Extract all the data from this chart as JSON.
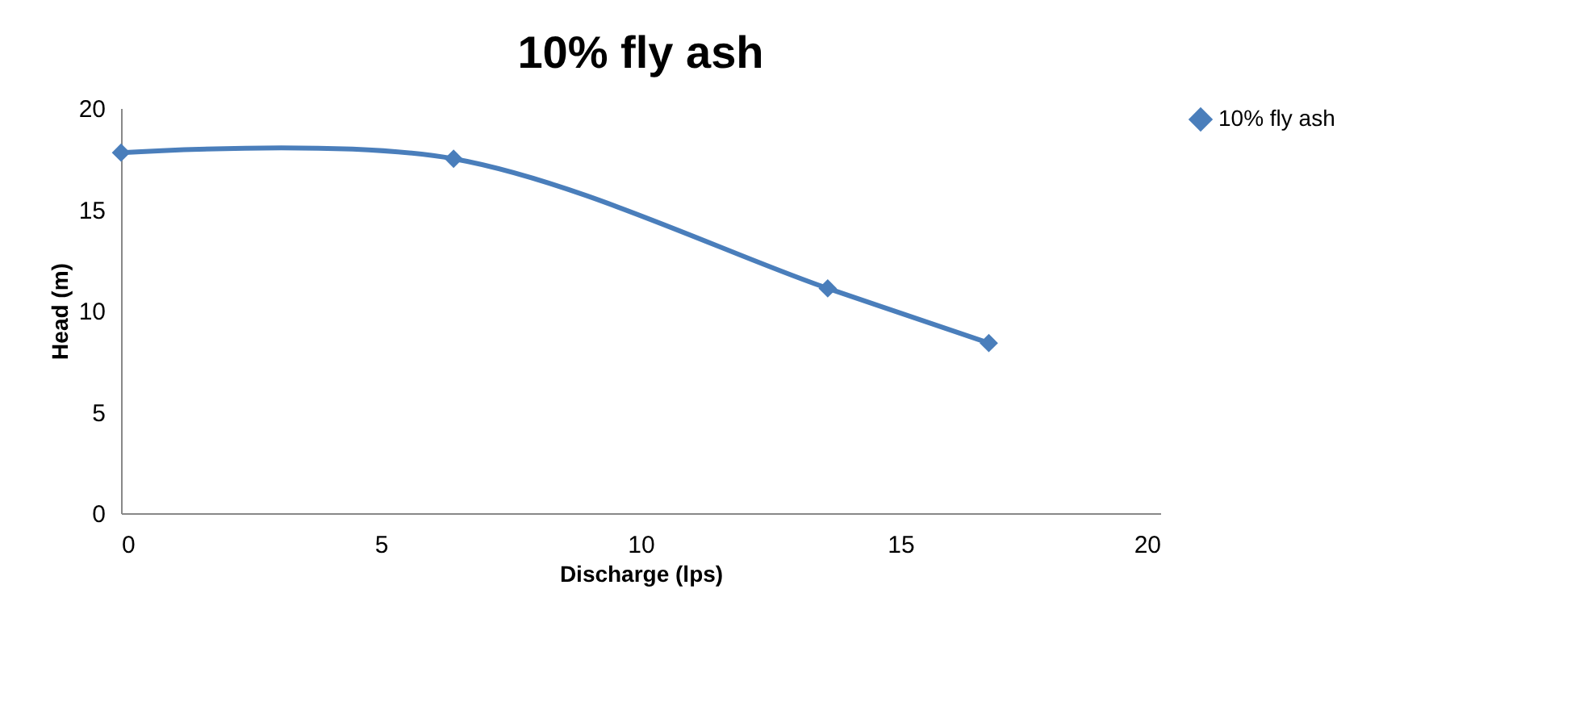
{
  "chart_data": {
    "type": "line",
    "title": "10% fly ash",
    "xlabel": "Discharge (lps)",
    "ylabel": "Head (m)",
    "x": [
      0,
      6.4,
      13.6,
      16.7
    ],
    "series": [
      {
        "name": "10% fly ash",
        "color": "#4a7ebb",
        "values": [
          17.8,
          17.5,
          11.1,
          8.4
        ]
      }
    ],
    "xlim": [
      0,
      20
    ],
    "xticks": [
      0,
      5,
      10,
      15,
      20
    ],
    "ylim": [
      0,
      20
    ],
    "yticks": [
      0,
      5,
      10,
      15,
      20
    ],
    "grid": false,
    "legend": "right",
    "marker": "diamond",
    "line_style": "solid"
  }
}
